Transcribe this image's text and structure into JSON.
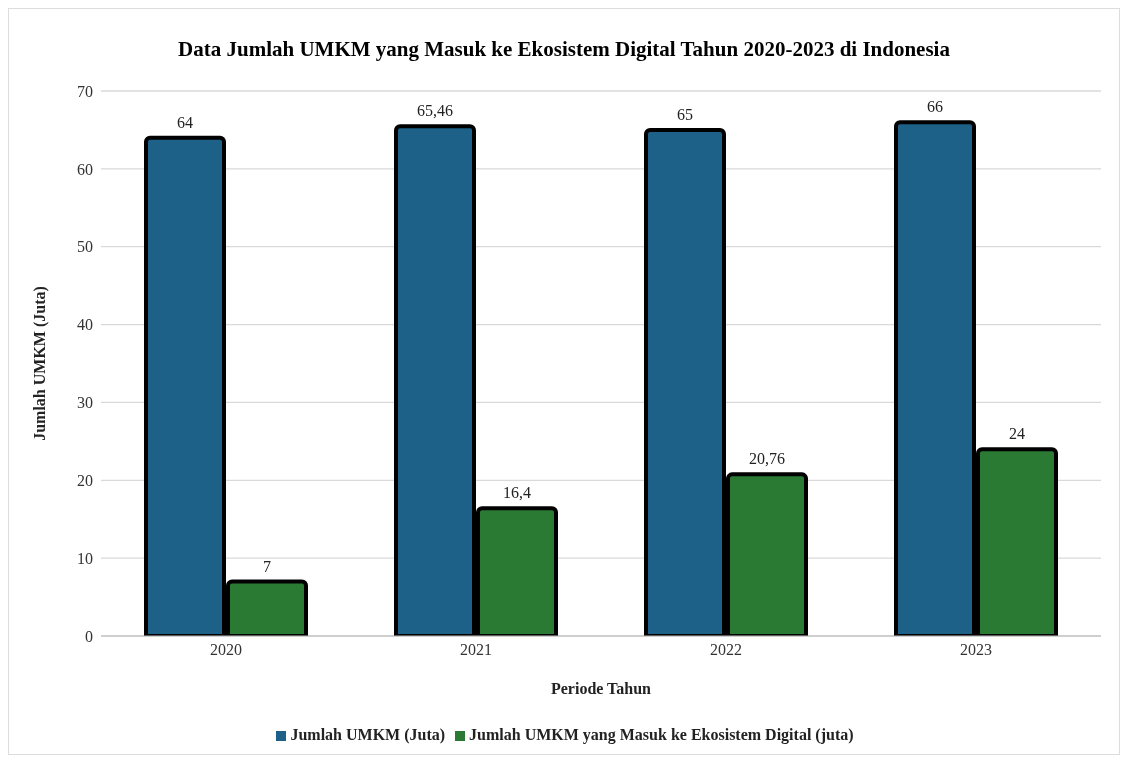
{
  "chart_data": {
    "type": "bar",
    "title": "Data Jumlah UMKM yang Masuk ke Ekosistem Digital Tahun 2020-2023 di Indonesia",
    "xlabel": "Periode Tahun",
    "ylabel": "Jumlah UMKM (Juta)",
    "categories": [
      "2020",
      "2021",
      "2022",
      "2023"
    ],
    "series": [
      {
        "name": "Jumlah UMKM (Juta)",
        "color": "#1d6088",
        "values": [
          64,
          65.46,
          65,
          66
        ],
        "value_labels": [
          "64",
          "65,46",
          "65",
          "66"
        ]
      },
      {
        "name": "Jumlah UMKM yang Masuk ke Ekosistem Digital (juta)",
        "color": "#2a7a33",
        "values": [
          7,
          16.4,
          20.76,
          24
        ],
        "value_labels": [
          "7",
          "16,4",
          "20,76",
          "24"
        ]
      }
    ],
    "ylim": [
      0,
      70
    ],
    "yticks": [
      0,
      10,
      20,
      30,
      40,
      50,
      60,
      70
    ],
    "grid": "y",
    "legend": "bottom"
  }
}
